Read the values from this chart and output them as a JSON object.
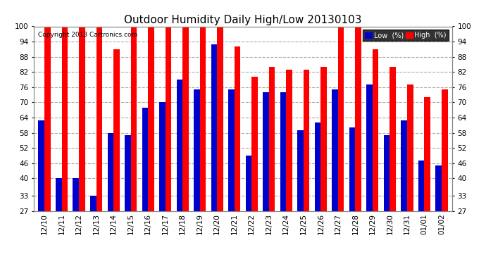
{
  "title": "Outdoor Humidity Daily High/Low 20130103",
  "copyright": "Copyright 2013 Cartronics.com",
  "dates": [
    "12/10",
    "12/11",
    "12/12",
    "12/13",
    "12/14",
    "12/15",
    "12/16",
    "12/17",
    "12/18",
    "12/19",
    "12/20",
    "12/21",
    "12/22",
    "12/23",
    "12/24",
    "12/25",
    "12/26",
    "12/27",
    "12/28",
    "12/29",
    "12/30",
    "12/31",
    "01/01",
    "01/02"
  ],
  "high": [
    100,
    100,
    100,
    100,
    91,
    100,
    100,
    100,
    100,
    100,
    100,
    92,
    80,
    84,
    83,
    83,
    84,
    100,
    100,
    91,
    84,
    77,
    72,
    75
  ],
  "low": [
    63,
    40,
    40,
    33,
    58,
    57,
    68,
    70,
    79,
    75,
    93,
    75,
    49,
    74,
    74,
    59,
    62,
    75,
    60,
    77,
    57,
    63,
    47,
    45
  ],
  "ylim": [
    27,
    100
  ],
  "yticks": [
    27,
    33,
    40,
    46,
    52,
    58,
    64,
    70,
    76,
    82,
    88,
    94,
    100
  ],
  "bar_width": 0.35,
  "low_color": "#0000cc",
  "high_color": "#ff0000",
  "bg_color": "#ffffff",
  "grid_color": "#aaaaaa",
  "title_fontsize": 11,
  "tick_fontsize": 7.5,
  "legend_low_label": "Low  (%)",
  "legend_high_label": "High  (%)"
}
